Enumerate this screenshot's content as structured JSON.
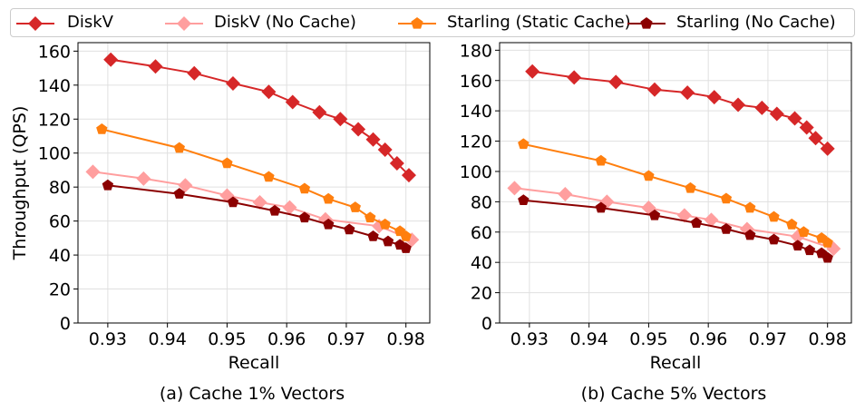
{
  "legend": {
    "items": [
      {
        "label": "DiskV",
        "color": "#d62728",
        "marker": "diamond"
      },
      {
        "label": "DiskV (No Cache)",
        "color": "#ff9e9e",
        "marker": "diamond"
      },
      {
        "label": "Starling (Static Cache)",
        "color": "#ff7f0e",
        "marker": "pentagon"
      },
      {
        "label": "Starling (No Cache)",
        "color": "#8b0000",
        "marker": "pentagon"
      }
    ]
  },
  "chart_data": [
    {
      "type": "line",
      "caption": "(a) Cache 1% Vectors",
      "xlabel": "Recall",
      "ylabel": "Throughput (QPS)",
      "xlim": [
        0.925,
        0.984
      ],
      "ylim": [
        0,
        165
      ],
      "xticks": [
        "0.93",
        "0.94",
        "0.95",
        "0.96",
        "0.97",
        "0.98"
      ],
      "yticks": [
        "0",
        "20",
        "40",
        "60",
        "80",
        "100",
        "120",
        "140",
        "160"
      ],
      "grid": true,
      "series": [
        {
          "name": "DiskV",
          "color": "#d62728",
          "marker": "diamond",
          "x": [
            0.9305,
            0.938,
            0.9445,
            0.951,
            0.957,
            0.961,
            0.9655,
            0.969,
            0.972,
            0.9745,
            0.9765,
            0.9785,
            0.9805
          ],
          "y": [
            155,
            151,
            147,
            141,
            136,
            130,
            124,
            120,
            114,
            108,
            102,
            94,
            87
          ]
        },
        {
          "name": "DiskV (No Cache)",
          "color": "#ff9e9e",
          "marker": "diamond",
          "x": [
            0.9275,
            0.936,
            0.943,
            0.95,
            0.9555,
            0.9605,
            0.9665,
            0.9755,
            0.981
          ],
          "y": [
            89,
            85,
            81,
            75,
            71,
            68,
            61,
            57,
            49
          ]
        },
        {
          "name": "Starling (Static Cache)",
          "color": "#ff7f0e",
          "marker": "pentagon",
          "x": [
            0.929,
            0.942,
            0.95,
            0.957,
            0.963,
            0.967,
            0.9715,
            0.974,
            0.9765,
            0.979,
            0.98
          ],
          "y": [
            114,
            103,
            94,
            86,
            79,
            73,
            68,
            62,
            58,
            54,
            51
          ]
        },
        {
          "name": "Starling (No Cache)",
          "color": "#8b0000",
          "marker": "pentagon",
          "x": [
            0.93,
            0.942,
            0.951,
            0.958,
            0.963,
            0.967,
            0.9705,
            0.9745,
            0.977,
            0.979,
            0.98
          ],
          "y": [
            81,
            76,
            71,
            66,
            62,
            58,
            55,
            51,
            48,
            46,
            44
          ]
        }
      ]
    },
    {
      "type": "line",
      "caption": "(b) Cache 5% Vectors",
      "xlabel": "Recall",
      "ylabel": "",
      "xlim": [
        0.925,
        0.984
      ],
      "ylim": [
        0,
        185
      ],
      "xticks": [
        "0.93",
        "0.94",
        "0.95",
        "0.96",
        "0.97",
        "0.98"
      ],
      "yticks": [
        "0",
        "20",
        "40",
        "60",
        "80",
        "100",
        "120",
        "140",
        "160",
        "180"
      ],
      "grid": true,
      "series": [
        {
          "name": "DiskV",
          "color": "#d62728",
          "marker": "diamond",
          "x": [
            0.9305,
            0.9375,
            0.9445,
            0.951,
            0.9565,
            0.961,
            0.965,
            0.969,
            0.9715,
            0.9745,
            0.9765,
            0.978,
            0.98
          ],
          "y": [
            166,
            162,
            159,
            154,
            152,
            149,
            144,
            142,
            138,
            135,
            129,
            122,
            115
          ]
        },
        {
          "name": "DiskV (No Cache)",
          "color": "#ff9e9e",
          "marker": "diamond",
          "x": [
            0.9275,
            0.936,
            0.943,
            0.95,
            0.956,
            0.9605,
            0.9665,
            0.975,
            0.981
          ],
          "y": [
            89,
            85,
            80,
            76,
            71,
            68,
            62,
            57,
            49
          ]
        },
        {
          "name": "Starling (Static Cache)",
          "color": "#ff7f0e",
          "marker": "pentagon",
          "x": [
            0.929,
            0.942,
            0.95,
            0.957,
            0.963,
            0.967,
            0.971,
            0.974,
            0.976,
            0.979,
            0.98
          ],
          "y": [
            118,
            107,
            97,
            89,
            82,
            76,
            70,
            65,
            60,
            56,
            53
          ]
        },
        {
          "name": "Starling (No Cache)",
          "color": "#8b0000",
          "marker": "pentagon",
          "x": [
            0.929,
            0.942,
            0.951,
            0.958,
            0.963,
            0.967,
            0.971,
            0.975,
            0.977,
            0.979,
            0.98
          ],
          "y": [
            81,
            76,
            71,
            66,
            62,
            58,
            55,
            51,
            48,
            46,
            43
          ]
        }
      ]
    }
  ]
}
